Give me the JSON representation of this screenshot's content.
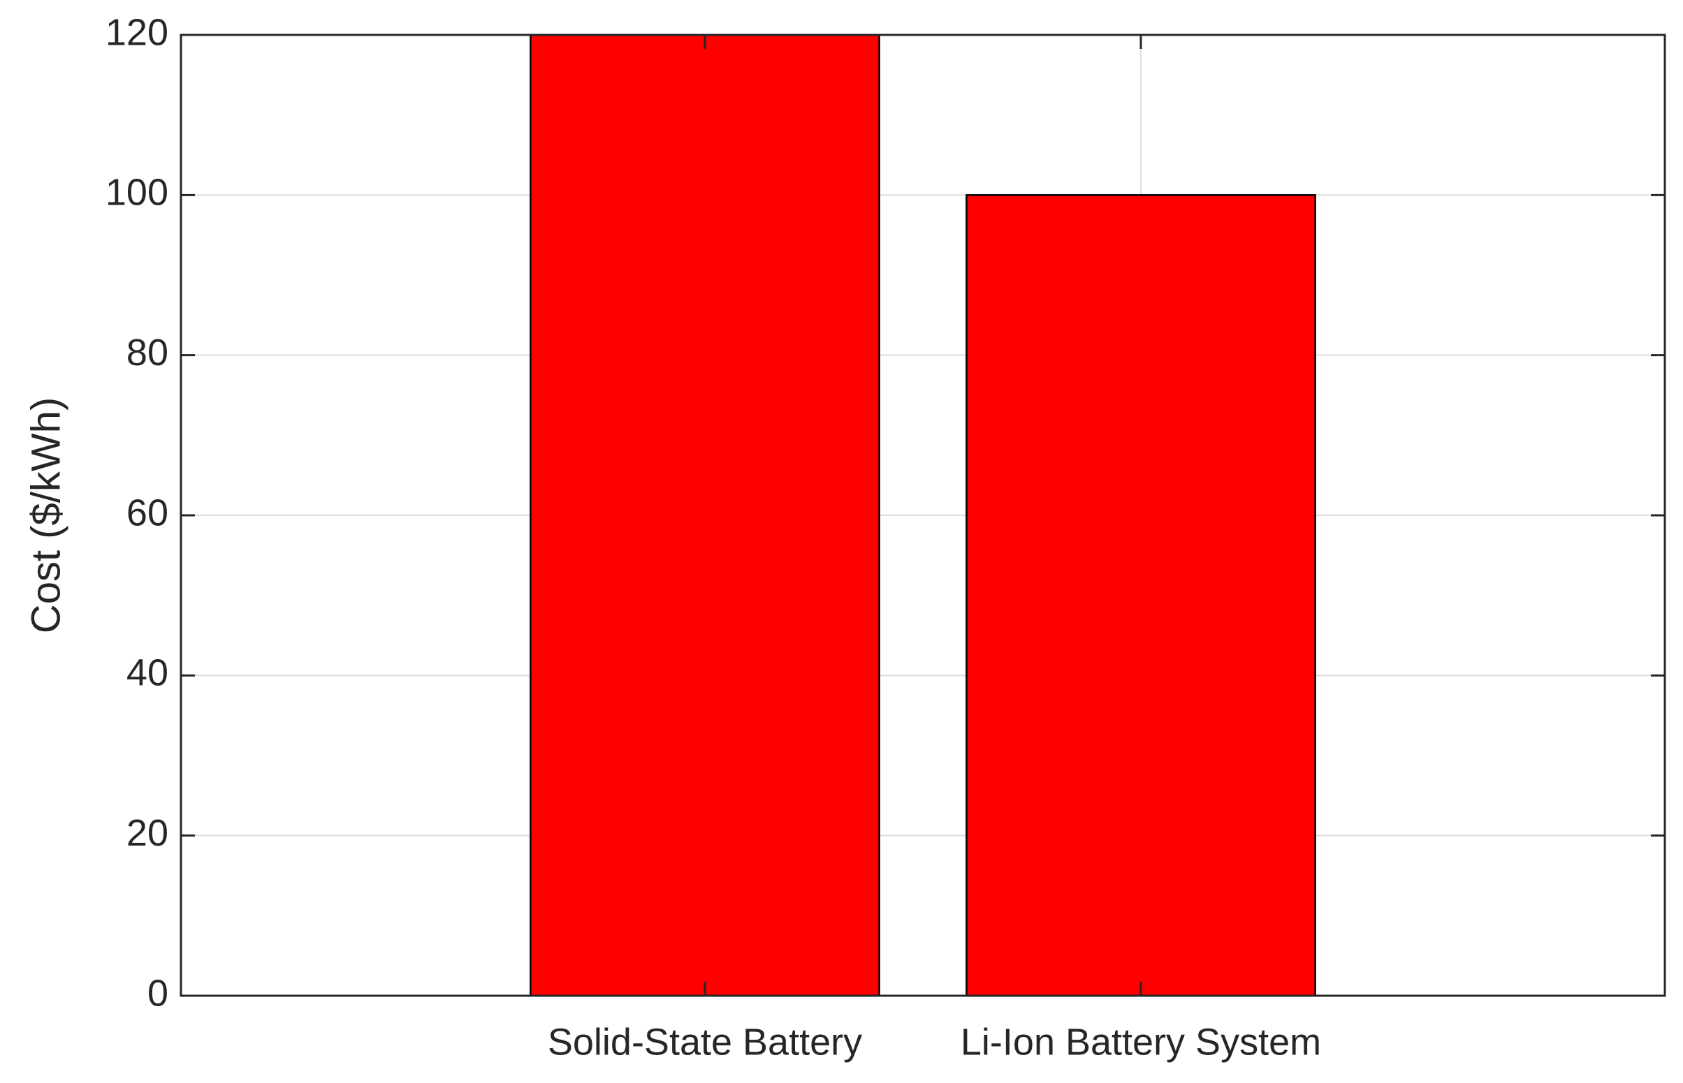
{
  "chart_data": {
    "type": "bar",
    "ylabel": "Cost ($/kWh)",
    "categories": [
      "Solid-State Battery",
      "Li-Ion Battery System"
    ],
    "values": [
      120,
      100
    ],
    "color": "#ff0000",
    "ylim": [
      0,
      120
    ],
    "yticks": [
      0,
      20,
      40,
      60,
      80,
      100,
      120
    ],
    "grid": true
  }
}
